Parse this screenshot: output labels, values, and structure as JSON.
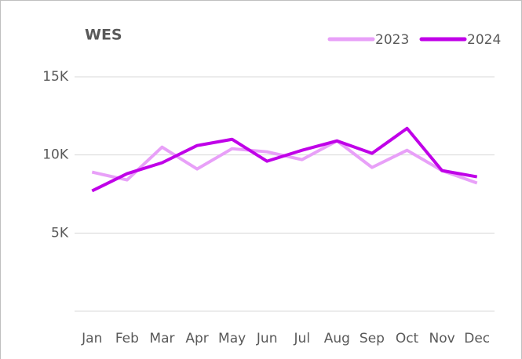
{
  "chart_data": {
    "type": "line",
    "title": "WES",
    "categories": [
      "Jan",
      "Feb",
      "Mar",
      "Apr",
      "May",
      "Jun",
      "Jul",
      "Aug",
      "Sep",
      "Oct",
      "Nov",
      "Dec"
    ],
    "series": [
      {
        "name": "2023",
        "color": "#e8a0f8",
        "values": [
          8900,
          8400,
          10500,
          9100,
          10400,
          10200,
          9700,
          10900,
          9200,
          10300,
          9000,
          8200
        ]
      },
      {
        "name": "2024",
        "color": "#c000e8",
        "values": [
          7700,
          8800,
          9500,
          10600,
          11000,
          9600,
          10300,
          10900,
          10100,
          11700,
          9000,
          8600
        ]
      }
    ],
    "ylim": [
      0,
      15000
    ],
    "yticks": [
      {
        "value": 5000,
        "label": "5K"
      },
      {
        "value": 10000,
        "label": "10K"
      },
      {
        "value": 15000,
        "label": "15K"
      }
    ],
    "grid": true,
    "legend": "top-right"
  }
}
